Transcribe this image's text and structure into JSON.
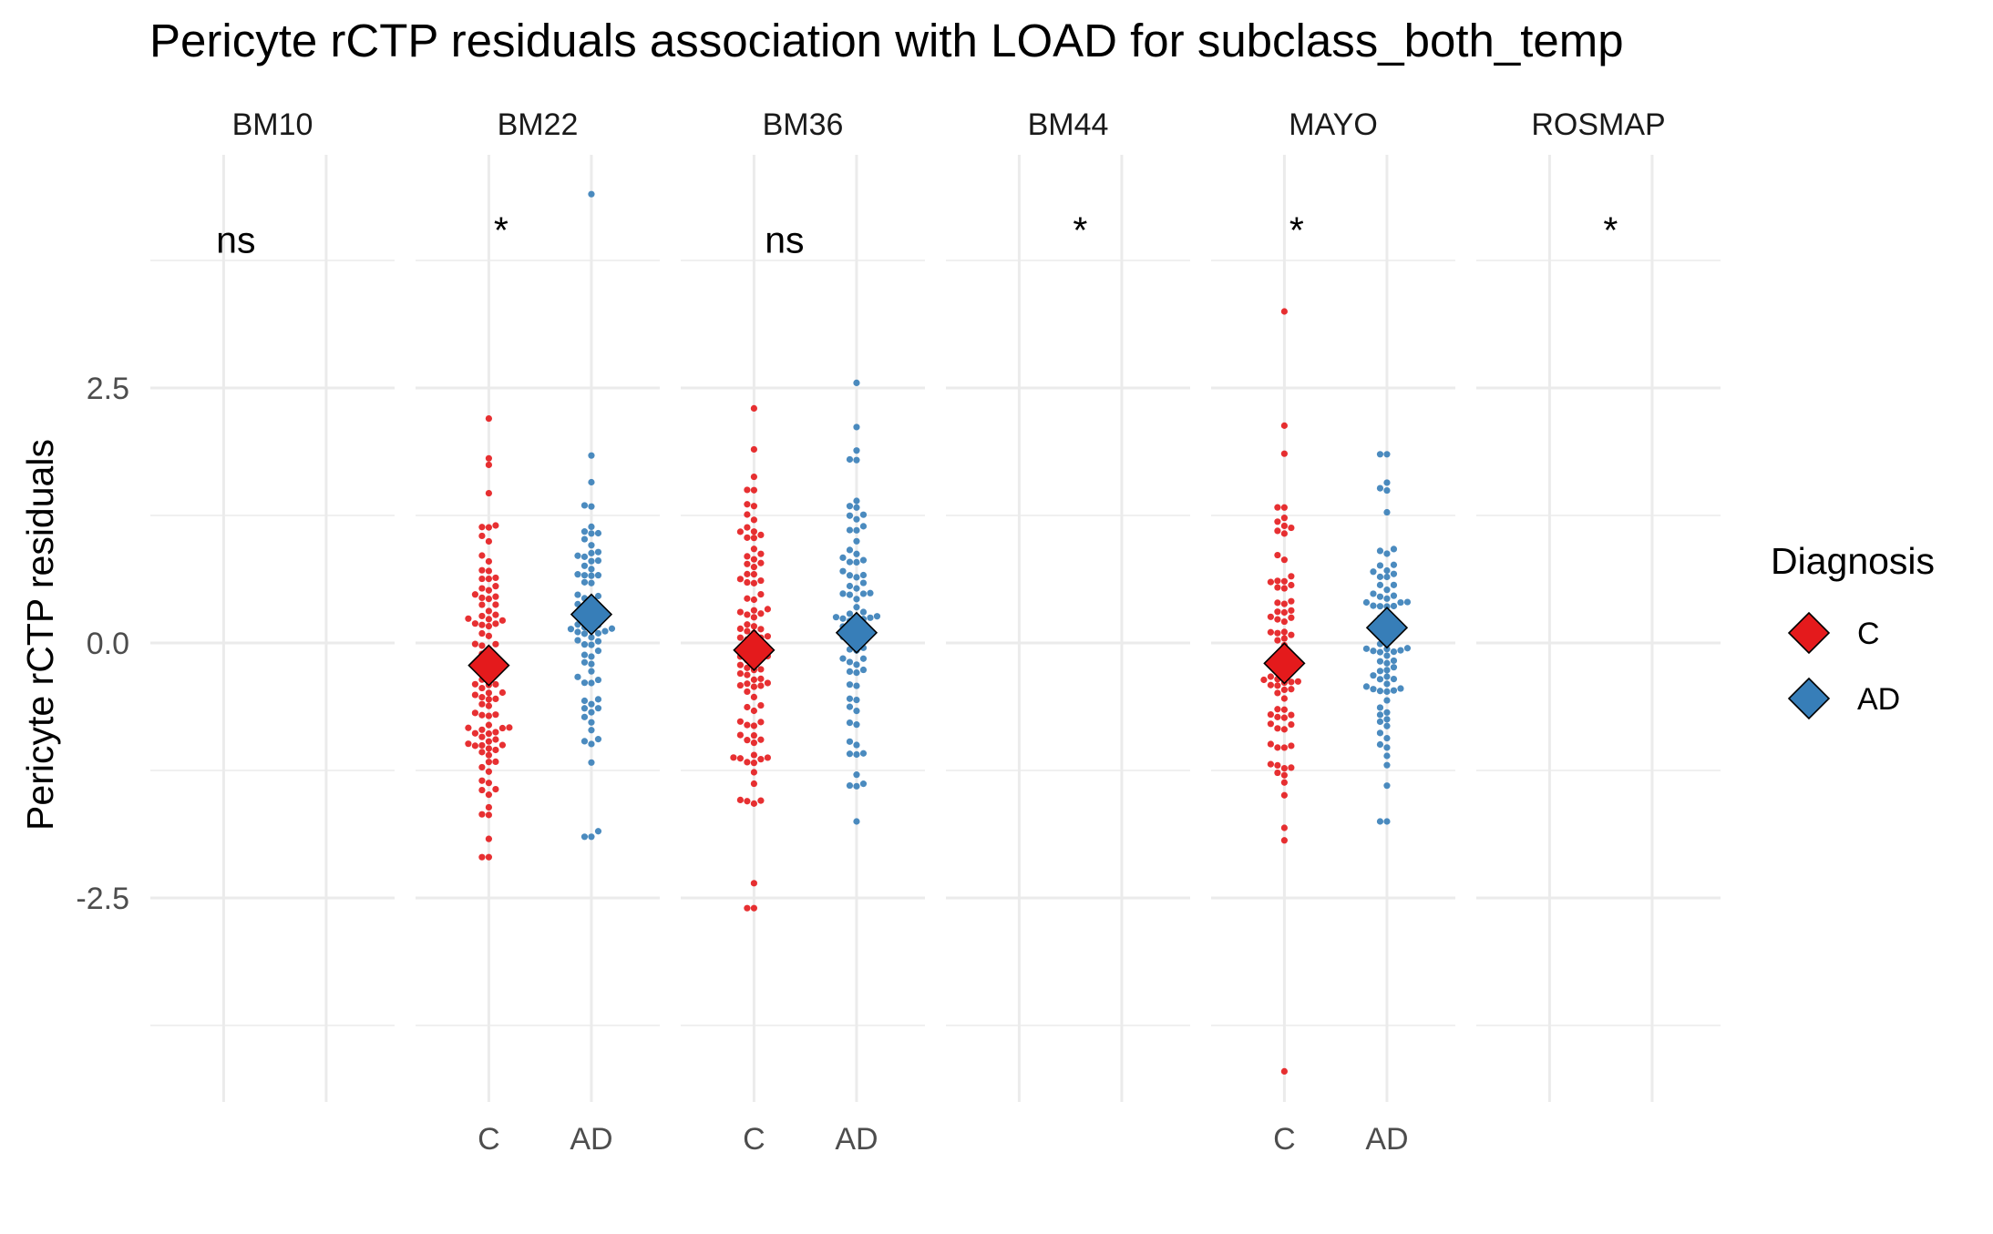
{
  "chart_data": {
    "type": "scatter",
    "title": "Pericyte rCTP residuals association with LOAD for subclass_both_temp",
    "xlabel": "",
    "ylabel": "Pericyte rCTP residuals",
    "ylim": [
      -4.5,
      4.5
    ],
    "y_ticks": [
      -2.5,
      0.0,
      2.5
    ],
    "y_tick_labels": [
      "-2.5",
      "0.0",
      "2.5"
    ],
    "grid": true,
    "legend": {
      "title": "Diagnosis",
      "position": "right",
      "entries": [
        {
          "label": "C",
          "color": "#E41A1C"
        },
        {
          "label": "AD",
          "color": "#377EB8"
        }
      ]
    },
    "categories": [
      "C",
      "AD"
    ],
    "colors": {
      "C": "#E41A1C",
      "AD": "#377EB8"
    },
    "panels": [
      {
        "label": "BM10",
        "significance": "ns",
        "sig_x": 1.1,
        "sig_y": 3.95,
        "groups": []
      },
      {
        "label": "BM22",
        "significance": "*",
        "sig_x": 1.1,
        "sig_y": 4.05,
        "groups": [
          {
            "diagnosis": "C",
            "mean": -0.22,
            "n": 100,
            "min": -2.1,
            "max": 2.2,
            "sd": 0.85,
            "seed": 11
          },
          {
            "diagnosis": "AD",
            "mean": 0.28,
            "n": 75,
            "min": -1.9,
            "max": 4.4,
            "sd": 0.8,
            "seed": 12
          }
        ]
      },
      {
        "label": "BM36",
        "significance": "ns",
        "sig_x": 1.25,
        "sig_y": 3.95,
        "groups": [
          {
            "diagnosis": "C",
            "mean": -0.07,
            "n": 100,
            "min": -2.6,
            "max": 2.3,
            "sd": 0.9,
            "seed": 21
          },
          {
            "diagnosis": "AD",
            "mean": 0.1,
            "n": 80,
            "min": -1.75,
            "max": 2.55,
            "sd": 0.8,
            "seed": 22
          }
        ]
      },
      {
        "label": "BM44",
        "significance": "*",
        "sig_x": 1.5,
        "sig_y": 4.05,
        "groups": []
      },
      {
        "label": "MAYO",
        "significance": "*",
        "sig_x": 1.1,
        "sig_y": 4.05,
        "groups": [
          {
            "diagnosis": "C",
            "mean": -0.2,
            "n": 75,
            "min": -4.2,
            "max": 3.25,
            "sd": 0.95,
            "seed": 31
          },
          {
            "diagnosis": "AD",
            "mean": 0.15,
            "n": 80,
            "min": -1.75,
            "max": 1.85,
            "sd": 0.7,
            "seed": 32
          }
        ]
      },
      {
        "label": "ROSMAP",
        "significance": "*",
        "sig_x": 1.5,
        "sig_y": 4.05,
        "groups": []
      }
    ],
    "mean_marker": "diamond"
  }
}
